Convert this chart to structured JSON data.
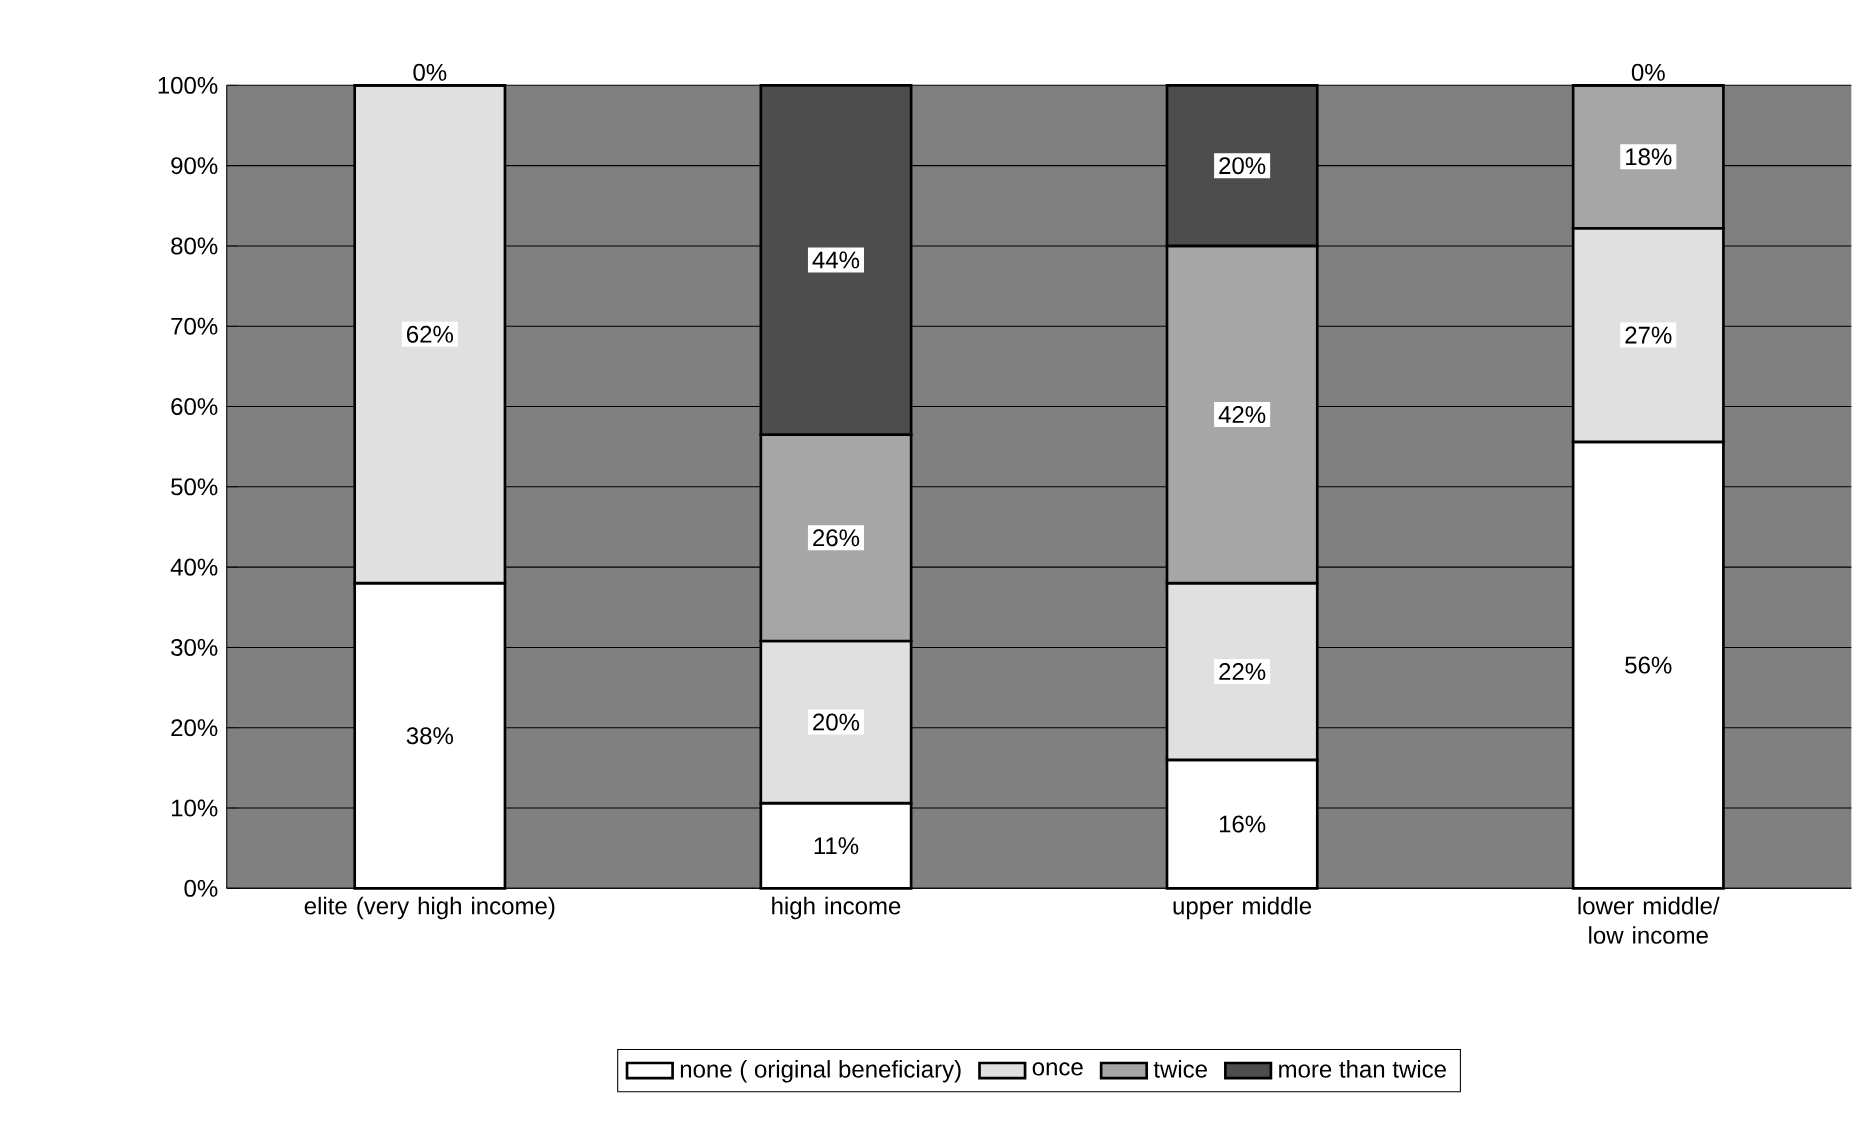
{
  "chart_data": {
    "type": "bar",
    "stacked": true,
    "categories": [
      "elite (very high income)",
      "high income",
      "upper middle",
      "lower middle/ low income"
    ],
    "series": [
      {
        "name": "none ( original beneficiary)",
        "color": "#ffffff",
        "values": [
          38,
          10.6,
          16,
          55.6
        ],
        "value_labels": [
          "38%",
          "11%",
          "16%",
          "56%"
        ]
      },
      {
        "name": "once",
        "color": "#e0e0e0",
        "values": [
          62,
          20.2,
          22,
          26.6
        ],
        "value_labels": [
          "62%",
          "20%",
          "22%",
          "27%"
        ]
      },
      {
        "name": "twice",
        "color": "#a6a6a6",
        "values": [
          0,
          25.7,
          42,
          17.8
        ],
        "value_labels": [
          "0%",
          "26%",
          "42%",
          "18%"
        ]
      },
      {
        "name": "more than twice",
        "color": "#4d4d4d",
        "values": [
          null,
          43.5,
          20,
          0
        ],
        "value_labels": [
          null,
          "44%",
          "20%",
          "0%"
        ]
      }
    ],
    "ylim": [
      0,
      100
    ],
    "yticks": [
      {
        "value": 0,
        "label": "0%"
      },
      {
        "value": 10,
        "label": "10%"
      },
      {
        "value": 20,
        "label": "20%"
      },
      {
        "value": 30,
        "label": "30%"
      },
      {
        "value": 40,
        "label": "40%"
      },
      {
        "value": 50,
        "label": "50%"
      },
      {
        "value": 60,
        "label": "60%"
      },
      {
        "value": 70,
        "label": "70%"
      },
      {
        "value": 80,
        "label": "80%"
      },
      {
        "value": 90,
        "label": "90%"
      },
      {
        "value": 100,
        "label": "100%"
      }
    ],
    "grid": "y",
    "legend": "bottom"
  }
}
